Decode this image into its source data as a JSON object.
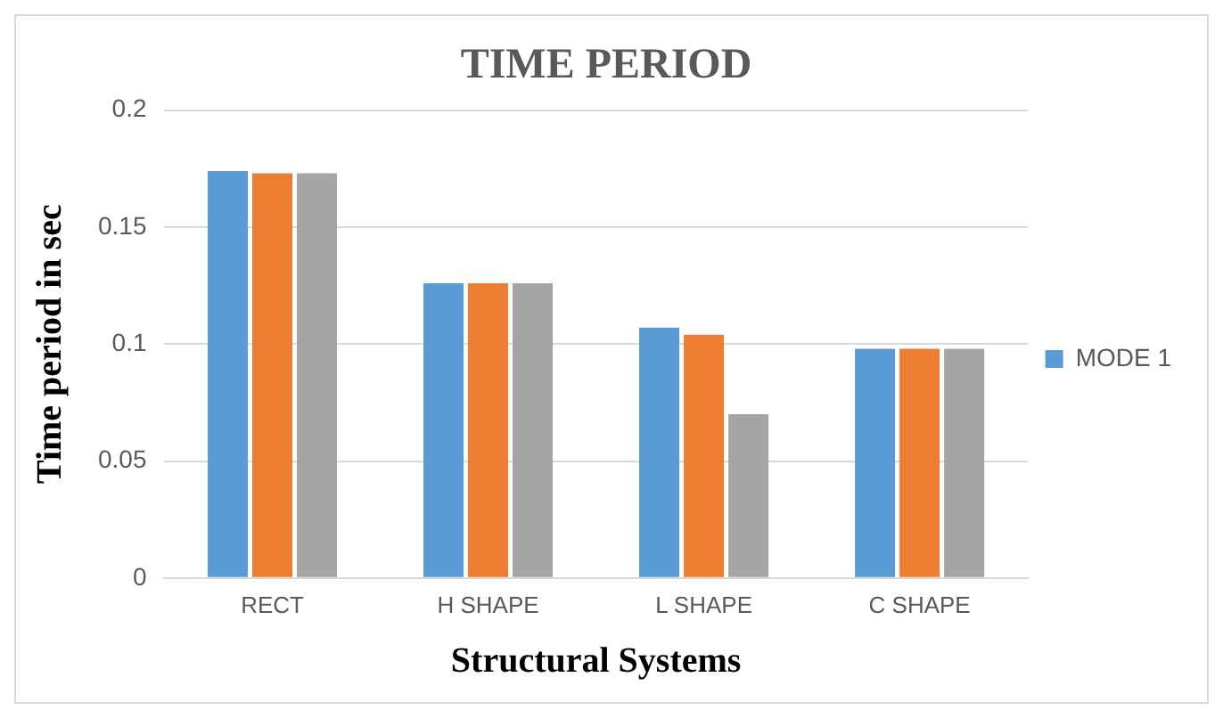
{
  "chart_data": {
    "type": "bar",
    "title": "TIME PERIOD",
    "xlabel": "Structural Systems",
    "ylabel": "Time period in sec",
    "categories": [
      "RECT",
      "H SHAPE",
      "L SHAPE",
      "C SHAPE"
    ],
    "series": [
      {
        "name": "MODE 1",
        "color": "#5b9bd5",
        "values": [
          0.174,
          0.126,
          0.107,
          0.098
        ]
      },
      {
        "color": "#ed7d31",
        "values": [
          0.173,
          0.126,
          0.104,
          0.098
        ]
      },
      {
        "color": "#a5a5a5",
        "values": [
          0.173,
          0.126,
          0.07,
          0.098
        ]
      }
    ],
    "ylim": [
      0,
      0.2
    ],
    "yticks": [
      0,
      0.05,
      0.1,
      0.15,
      0.2
    ],
    "grid": "y",
    "legend": "right"
  }
}
